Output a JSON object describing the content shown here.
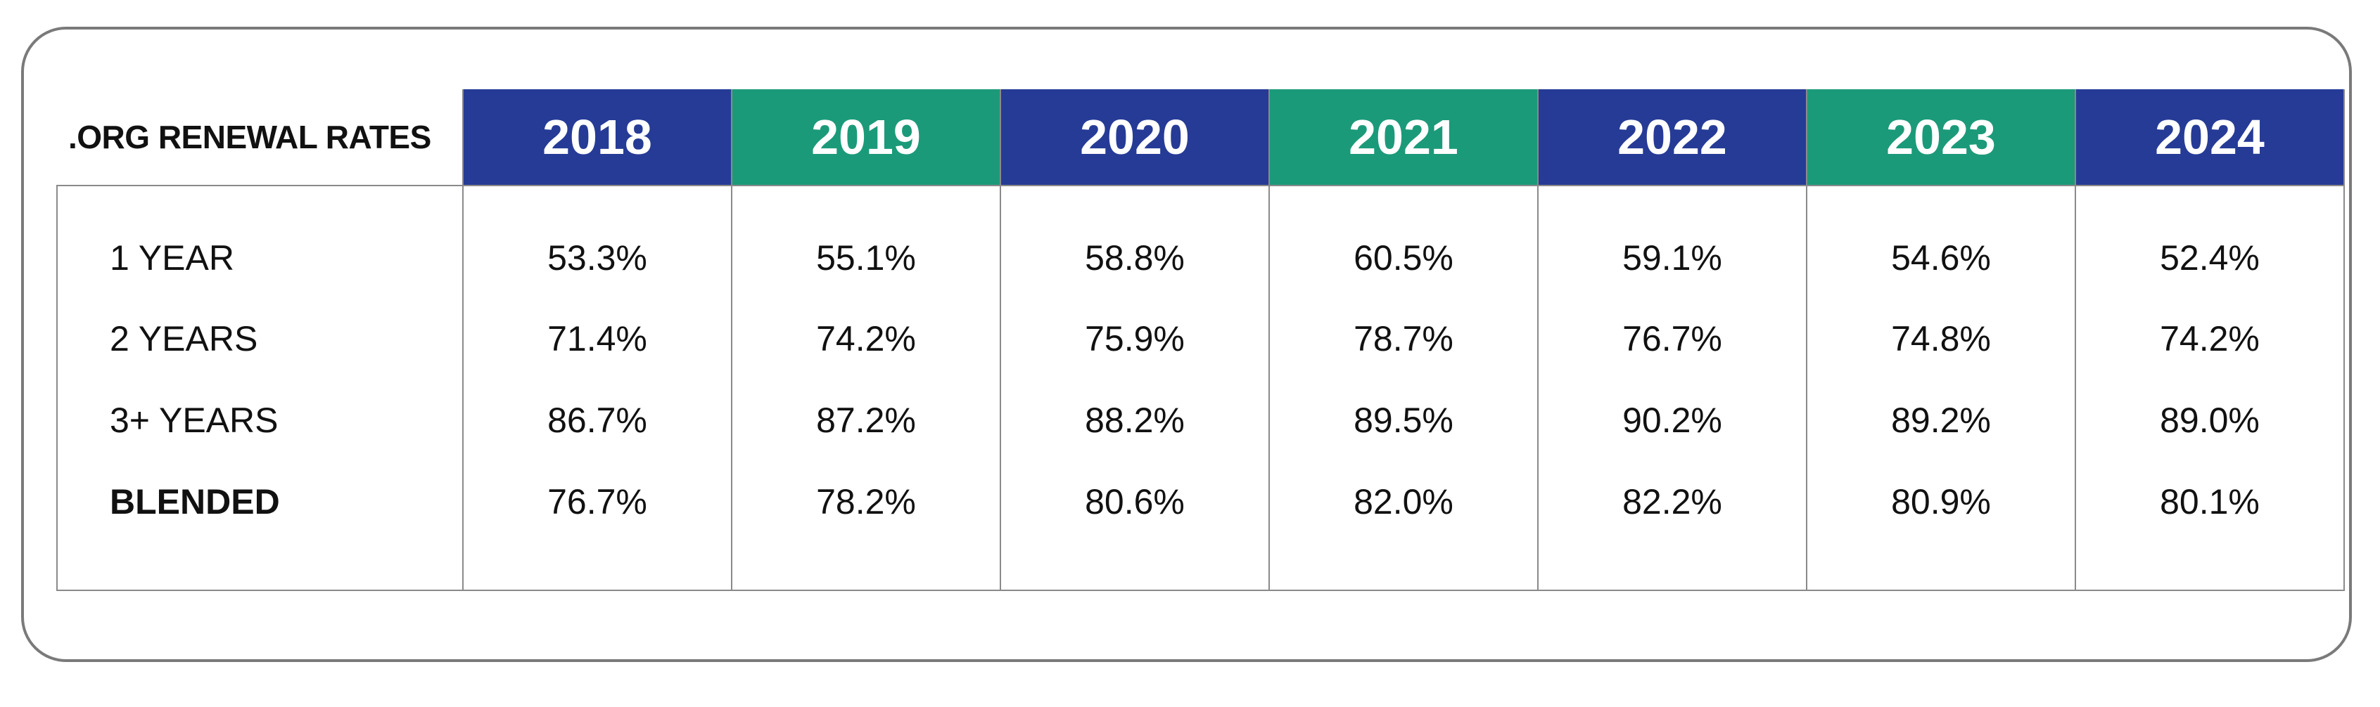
{
  "chart_data": {
    "type": "table",
    "title": ".ORG RENEWAL RATES",
    "columns": [
      {
        "label": "2018",
        "color": "#263b96"
      },
      {
        "label": "2019",
        "color": "#1b9a79"
      },
      {
        "label": "2020",
        "color": "#263b96"
      },
      {
        "label": "2021",
        "color": "#1b9a79"
      },
      {
        "label": "2022",
        "color": "#263b96"
      },
      {
        "label": "2023",
        "color": "#1b9a79"
      },
      {
        "label": "2024",
        "color": "#263b96"
      }
    ],
    "rows": [
      {
        "label": "1 YEAR",
        "bold": false,
        "values": [
          "53.3%",
          "55.1%",
          "58.8%",
          "60.5%",
          "59.1%",
          "54.6%",
          "52.4%"
        ]
      },
      {
        "label": "2 YEARS",
        "bold": false,
        "values": [
          "71.4%",
          "74.2%",
          "75.9%",
          "78.7%",
          "76.7%",
          "74.8%",
          "74.2%"
        ]
      },
      {
        "label": "3+ YEARS",
        "bold": false,
        "values": [
          "86.7%",
          "87.2%",
          "88.2%",
          "89.5%",
          "90.2%",
          "89.2%",
          "89.0%"
        ]
      },
      {
        "label": "BLENDED",
        "bold": true,
        "values": [
          "76.7%",
          "78.2%",
          "80.6%",
          "82.0%",
          "82.2%",
          "80.9%",
          "80.1%"
        ]
      }
    ]
  }
}
